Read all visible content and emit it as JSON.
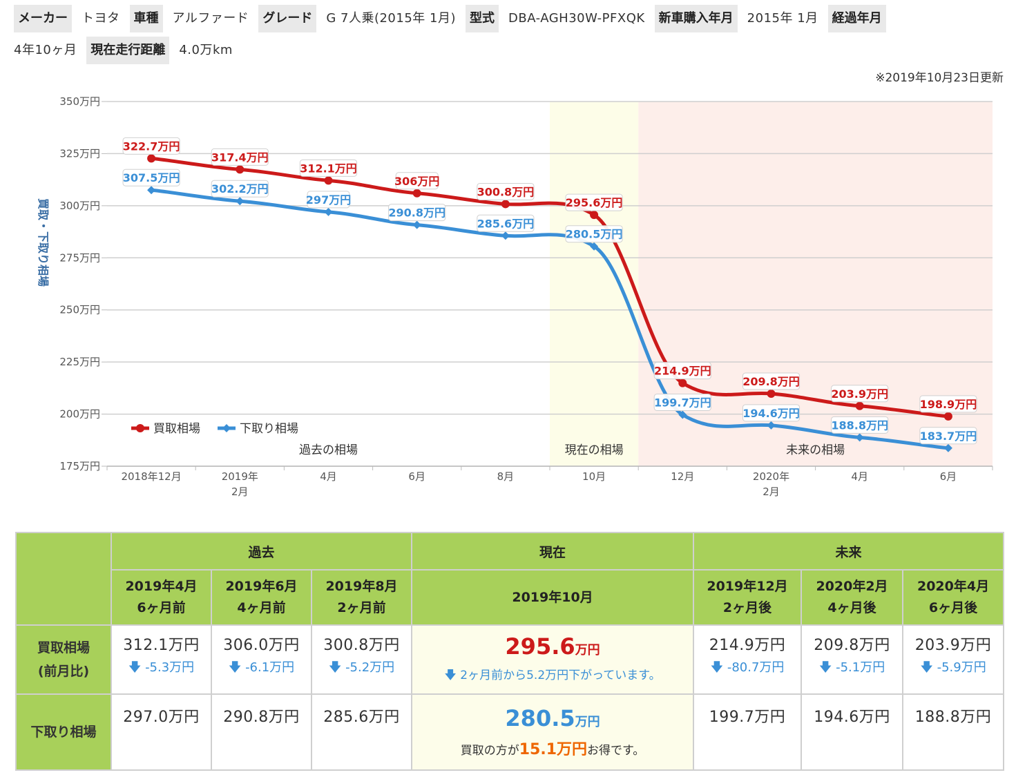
{
  "info": {
    "maker_label": "メーカー",
    "maker": "トヨタ",
    "model_label": "車種",
    "model": "アルファード",
    "grade_label": "グレード",
    "grade": "G 7人乗(2015年 1月)",
    "type_label": "型式",
    "type": "DBA-AGH30W-PFXQK",
    "purchase_label": "新車購入年月",
    "purchase": "2015年 1月",
    "elapsed_label": "経過年月",
    "elapsed": "4年10ヶ月",
    "mileage_label": "現在走行距離",
    "mileage": "4.0万km"
  },
  "updated": "※2019年10月23日更新",
  "colors": {
    "buy": "#cc1a1a",
    "trade": "#3a8fd6",
    "current_band": "#fdfde8",
    "future_band": "#fdeeea",
    "grid": "#cfcfcf"
  },
  "chart_data": {
    "type": "line",
    "ylabel": "買取・下取り相場",
    "ylim": [
      175,
      350
    ],
    "yticks": [
      175,
      200,
      225,
      250,
      275,
      300,
      325,
      350
    ],
    "ytick_suffix": "万円",
    "categories": [
      "2018年12月",
      "2019年\n2月",
      "4月",
      "6月",
      "8月",
      "10月",
      "12月",
      "2020年\n2月",
      "4月",
      "6月"
    ],
    "series": [
      {
        "name": "買取相場",
        "values": [
          322.7,
          317.4,
          312.1,
          306,
          300.8,
          295.6,
          214.9,
          209.8,
          203.9,
          198.9
        ],
        "labels": [
          "322.7万円",
          "317.4万円",
          "312.1万円",
          "306万円",
          "300.8万円",
          "295.6万円",
          "214.9万円",
          "209.8万円",
          "203.9万円",
          "198.9万円"
        ]
      },
      {
        "name": "下取り相場",
        "values": [
          307.5,
          302.2,
          297,
          290.8,
          285.6,
          280.5,
          199.7,
          194.6,
          188.8,
          183.7
        ],
        "labels": [
          "307.5万円",
          "302.2万円",
          "297万円",
          "290.8万円",
          "285.6万円",
          "280.5万円",
          "199.7万円",
          "194.6万円",
          "188.8万円",
          "183.7万円"
        ]
      }
    ],
    "regions": [
      {
        "label": "過去の相場",
        "from_index": 0,
        "to_index": 4
      },
      {
        "label": "現在の相場",
        "from_index": 5,
        "to_index": 5
      },
      {
        "label": "未来の相場",
        "from_index": 6,
        "to_index": 9
      }
    ],
    "legend_position": "bottom-left"
  },
  "table": {
    "groups": {
      "past": "過去",
      "current": "現在",
      "future": "未来"
    },
    "past": [
      {
        "date": "2019年4月",
        "rel": "6ヶ月前",
        "buy": "312.1万円",
        "diff": "-5.3万円",
        "trade": "297.0万円"
      },
      {
        "date": "2019年6月",
        "rel": "4ヶ月前",
        "buy": "306.0万円",
        "diff": "-6.1万円",
        "trade": "290.8万円"
      },
      {
        "date": "2019年8月",
        "rel": "2ヶ月前",
        "buy": "300.8万円",
        "diff": "-5.2万円",
        "trade": "285.6万円"
      }
    ],
    "current": {
      "date": "2019年10月",
      "buy_value": "295.6",
      "buy_unit": "万円",
      "buy_note": "2ヶ月前から5.2万円下がっています。",
      "trade_value": "280.5",
      "trade_unit": "万円",
      "trade_note_pre": "買取の方が",
      "trade_note_amount": "15.1万円",
      "trade_note_post": "お得です。"
    },
    "future": [
      {
        "date": "2019年12月",
        "rel": "2ヶ月後",
        "buy": "214.9万円",
        "diff": "-80.7万円",
        "trade": "199.7万円"
      },
      {
        "date": "2020年2月",
        "rel": "4ヶ月後",
        "buy": "209.8万円",
        "diff": "-5.1万円",
        "trade": "194.6万円"
      },
      {
        "date": "2020年4月",
        "rel": "6ヶ月後",
        "buy": "203.9万円",
        "diff": "-5.9万円",
        "trade": "188.8万円"
      }
    ],
    "row_labels": {
      "buy_1": "買取相場",
      "buy_2": "(前月比)",
      "trade": "下取り相場"
    },
    "down_arrow": "🡇"
  }
}
